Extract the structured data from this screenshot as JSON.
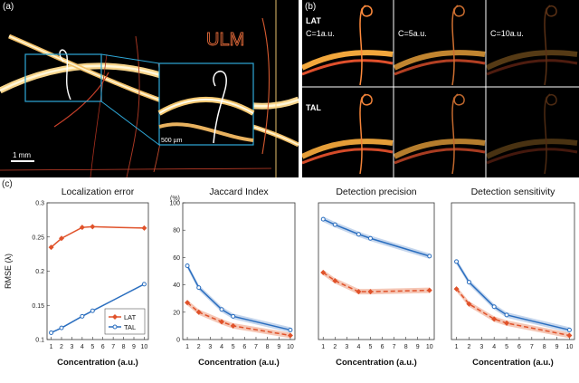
{
  "panel_a": {
    "label": "(a)",
    "title_text": "ULM",
    "inset_scale": "500 µm",
    "scale_bar": "1 mm"
  },
  "panel_b": {
    "label": "(b)",
    "row1": "LAT",
    "row2": "TAL",
    "conc": [
      "C=1a.u.",
      "C=5a.u.",
      "C=10a.u."
    ]
  },
  "panel_c": {
    "label": "(c)"
  },
  "colors": {
    "lat": "#e0522a",
    "tal": "#2a6ebf",
    "lat_band": "#f3b9a4",
    "tal_band": "#b7cce8"
  },
  "chart_data": [
    {
      "type": "line",
      "title": "Localization error",
      "xlabel": "Concentration (a.u.)",
      "ylabel": "RMSE (λ)",
      "x": [
        1,
        2,
        3,
        4,
        5,
        6,
        7,
        8,
        9,
        10
      ],
      "ylim": [
        0.1,
        0.3
      ],
      "yticks": [
        "0.1",
        "0.15",
        "0.2",
        "0.25",
        "0.3"
      ],
      "legend": "bottom-right",
      "series": [
        {
          "name": "LAT",
          "x": [
            1,
            2,
            4,
            5,
            10
          ],
          "values": [
            0.235,
            0.248,
            0.264,
            0.265,
            0.263
          ]
        },
        {
          "name": "TAL",
          "x": [
            1,
            2,
            4,
            5,
            10
          ],
          "values": [
            0.11,
            0.117,
            0.134,
            0.142,
            0.181
          ]
        }
      ]
    },
    {
      "type": "line",
      "title": "Jaccard Index",
      "xlabel": "Concentration (a.u.)",
      "ylabel": "(%)",
      "x": [
        1,
        2,
        3,
        4,
        5,
        6,
        7,
        8,
        9,
        10
      ],
      "ylim": [
        0,
        100
      ],
      "yticks": [
        "0",
        "20",
        "40",
        "60",
        "80",
        "100"
      ],
      "series": [
        {
          "x": [
            1,
            2,
            4,
            5,
            10
          ],
          "values": [
            54,
            38,
            22,
            17,
            7
          ]
        },
        {
          "x": [
            1,
            2,
            4,
            5,
            10
          ],
          "values": [
            27,
            20,
            13,
            10,
            3
          ]
        }
      ]
    },
    {
      "type": "line",
      "title": "Detection precision",
      "xlabel": "Concentration (a.u.)",
      "x": [
        1,
        2,
        3,
        4,
        5,
        6,
        7,
        8,
        9,
        10
      ],
      "ylim": [
        0,
        100
      ],
      "series": [
        {
          "x": [
            1,
            2,
            4,
            5,
            10
          ],
          "values": [
            88,
            84,
            77,
            74,
            61
          ]
        },
        {
          "x": [
            1,
            2,
            4,
            5,
            10
          ],
          "values": [
            49,
            43,
            35,
            35,
            36
          ]
        }
      ]
    },
    {
      "type": "line",
      "title": "Detection sensitivity",
      "xlabel": "Concentration (a.u.)",
      "x": [
        1,
        2,
        3,
        4,
        5,
        6,
        7,
        8,
        9,
        10
      ],
      "ylim": [
        0,
        100
      ],
      "series": [
        {
          "x": [
            1,
            2,
            4,
            5,
            10
          ],
          "values": [
            57,
            42,
            24,
            18,
            7
          ]
        },
        {
          "x": [
            1,
            2,
            4,
            5,
            10
          ],
          "values": [
            37,
            26,
            15,
            12,
            3
          ]
        }
      ]
    }
  ]
}
